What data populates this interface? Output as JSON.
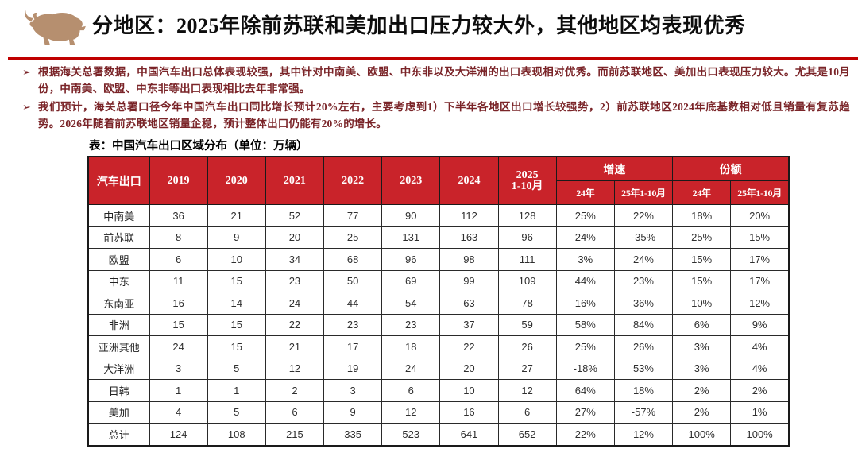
{
  "page": {
    "title": "分地区：2025年除前苏联和美加出口压力较大外，其他地区均表现优秀"
  },
  "colors": {
    "header_red": "#c9232a",
    "rule_red": "#c00000",
    "bullet_text": "#7a2428",
    "logo_tan": "#b68f6f"
  },
  "icons": {
    "logo": "bull-logo",
    "bullet_marker": "arrow-bullet"
  },
  "bullets": [
    {
      "marker": "➢",
      "text": "根据海关总署数据，中国汽车出口总体表现较强，其中针对中南美、欧盟、中东非以及大洋洲的出口表现相对优秀。而前苏联地区、美加出口表现压力较大。尤其是10月份，中南美、欧盟、中东非等出口表现相比去年非常强。"
    },
    {
      "marker": "➢",
      "text": "我们预计，海关总署口径今年中国汽车出口同比增长预计20%左右，主要考虑到1）下半年各地区出口增长较强势，2）前苏联地区2024年底基数相对低且销量有复苏趋势。2026年随着前苏联地区销量企稳，预计整体出口仍能有20%的增长。"
    }
  ],
  "table": {
    "caption": "表：中国汽车出口区域分布（单位：万辆）",
    "header": {
      "col0": "汽车出口",
      "years": [
        "2019",
        "2020",
        "2021",
        "2022",
        "2023",
        "2024"
      ],
      "y2025_line1": "2025",
      "y2025_line2": "1-10月",
      "groups": [
        {
          "label": "增速",
          "subcols": [
            "24年",
            "25年1-10月"
          ]
        },
        {
          "label": "份额",
          "subcols": [
            "24年",
            "25年1-10月"
          ]
        }
      ]
    },
    "rows": [
      {
        "label": "中南美",
        "values": [
          "36",
          "21",
          "52",
          "77",
          "90",
          "112",
          "128",
          "25%",
          "22%",
          "18%",
          "20%"
        ]
      },
      {
        "label": "前苏联",
        "values": [
          "8",
          "9",
          "20",
          "25",
          "131",
          "163",
          "96",
          "24%",
          "-35%",
          "25%",
          "15%"
        ]
      },
      {
        "label": "欧盟",
        "values": [
          "6",
          "10",
          "34",
          "68",
          "96",
          "98",
          "111",
          "3%",
          "24%",
          "15%",
          "17%"
        ]
      },
      {
        "label": "中东",
        "values": [
          "11",
          "15",
          "23",
          "50",
          "69",
          "99",
          "109",
          "44%",
          "23%",
          "15%",
          "17%"
        ]
      },
      {
        "label": "东南亚",
        "values": [
          "16",
          "14",
          "24",
          "44",
          "54",
          "63",
          "78",
          "16%",
          "36%",
          "10%",
          "12%"
        ]
      },
      {
        "label": "非洲",
        "values": [
          "15",
          "15",
          "22",
          "23",
          "23",
          "37",
          "59",
          "58%",
          "84%",
          "6%",
          "9%"
        ]
      },
      {
        "label": "亚洲其他",
        "values": [
          "24",
          "15",
          "21",
          "17",
          "18",
          "22",
          "26",
          "25%",
          "26%",
          "3%",
          "4%"
        ]
      },
      {
        "label": "大洋洲",
        "values": [
          "3",
          "5",
          "12",
          "19",
          "24",
          "20",
          "27",
          "-18%",
          "53%",
          "3%",
          "4%"
        ]
      },
      {
        "label": "日韩",
        "values": [
          "1",
          "1",
          "2",
          "3",
          "6",
          "10",
          "12",
          "64%",
          "18%",
          "2%",
          "2%"
        ]
      },
      {
        "label": "美加",
        "values": [
          "4",
          "5",
          "6",
          "9",
          "12",
          "16",
          "6",
          "27%",
          "-57%",
          "2%",
          "1%"
        ]
      },
      {
        "label": "总计",
        "values": [
          "124",
          "108",
          "215",
          "335",
          "523",
          "641",
          "652",
          "22%",
          "12%",
          "100%",
          "100%"
        ]
      }
    ]
  }
}
